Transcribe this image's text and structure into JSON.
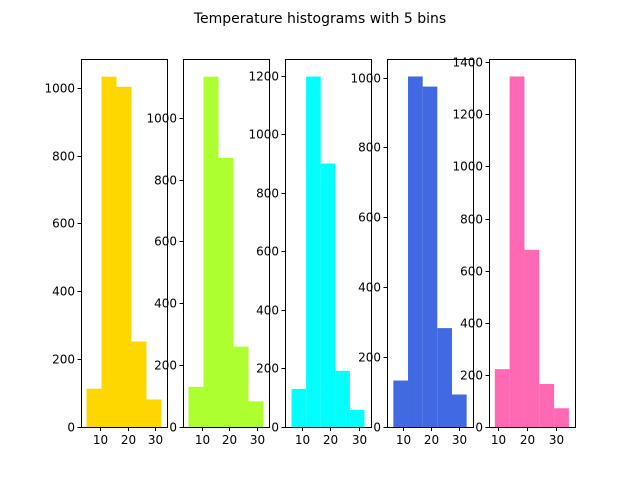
{
  "chart_data": {
    "type": "bar",
    "title": "Temperature histograms with 5 bins",
    "panels": [
      {
        "name": "",
        "color": "#FFD700",
        "bin_edges": [
          5.2,
          10.6,
          16.0,
          21.4,
          26.8,
          32.2
        ],
        "counts": [
          113,
          1033,
          1003,
          252,
          81
        ],
        "xlim": [
          3.2,
          34.2
        ],
        "ylim": [
          0,
          1085
        ],
        "xticks": [
          10,
          20,
          30
        ],
        "yticks": [
          0,
          200,
          400,
          600,
          800,
          1000
        ]
      },
      {
        "name": "",
        "color": "#ADFF2F",
        "bin_edges": [
          5.0,
          10.5,
          16.0,
          21.5,
          27.0,
          32.5
        ],
        "counts": [
          130,
          1133,
          870,
          260,
          83
        ],
        "xlim": [
          3.0,
          34.5
        ],
        "ylim": [
          0,
          1190
        ],
        "xticks": [
          10,
          20,
          30
        ],
        "yticks": [
          0,
          200,
          400,
          600,
          800,
          1000
        ]
      },
      {
        "name": "",
        "color": "#00FFFF",
        "bin_edges": [
          6.5,
          11.6,
          16.7,
          21.8,
          26.9,
          32.0
        ],
        "counts": [
          130,
          1197,
          900,
          192,
          58
        ],
        "xlim": [
          4.2,
          34.3
        ],
        "ylim": [
          0,
          1257
        ],
        "xticks": [
          10,
          20,
          30
        ],
        "yticks": [
          0,
          200,
          400,
          600,
          800,
          1000,
          1200
        ]
      },
      {
        "name": "",
        "color": "#4169E1",
        "bin_edges": [
          6.4,
          11.7,
          17.0,
          22.3,
          27.6,
          32.9
        ],
        "counts": [
          133,
          1003,
          974,
          283,
          93
        ],
        "xlim": [
          4.1,
          35.2
        ],
        "ylim": [
          0,
          1053
        ],
        "xticks": [
          10,
          20,
          30
        ],
        "yticks": [
          0,
          200,
          400,
          600,
          800,
          1000
        ]
      },
      {
        "name": "",
        "color": "#FF69B4",
        "bin_edges": [
          9.0,
          14.1,
          19.2,
          24.3,
          29.4,
          34.5
        ],
        "counts": [
          222,
          1345,
          680,
          165,
          72
        ],
        "xlim": [
          7.0,
          36.6
        ],
        "ylim": [
          0,
          1412
        ],
        "xticks": [
          10,
          20,
          30
        ],
        "yticks": [
          0,
          200,
          400,
          600,
          800,
          1000,
          1200,
          1400
        ]
      }
    ],
    "grid": false,
    "legend": "none"
  }
}
